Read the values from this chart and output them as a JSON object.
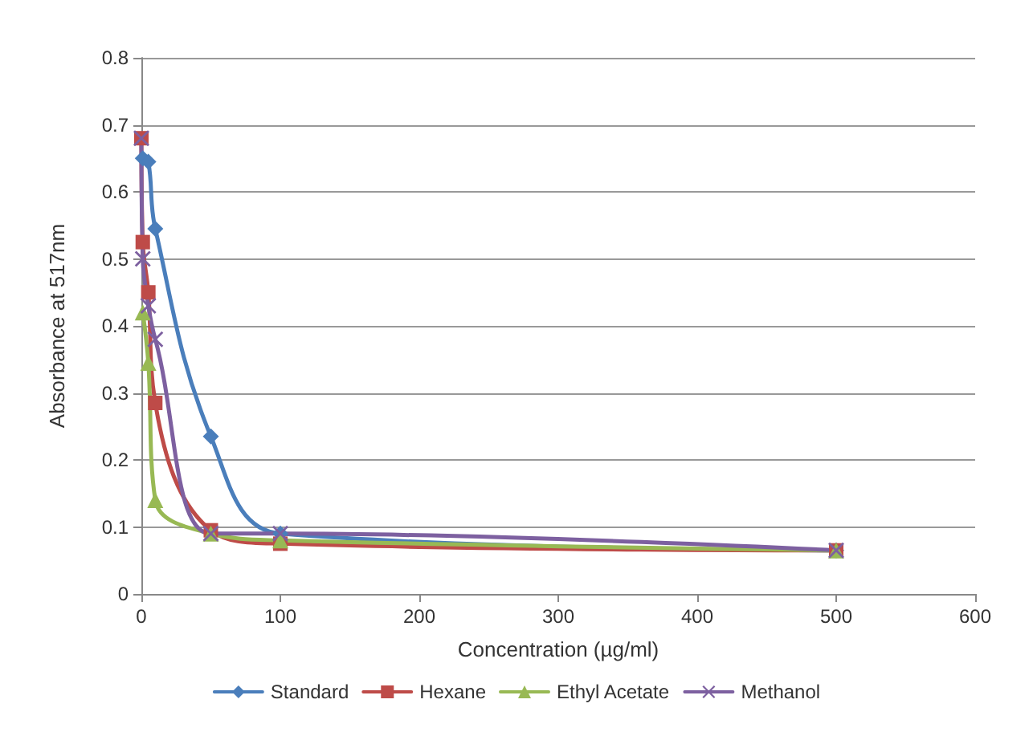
{
  "chart_data": {
    "type": "line",
    "xlabel": "Concentration (µg/ml)",
    "ylabel": "Absorbance at 517nm",
    "xlim": [
      0,
      600
    ],
    "xticks": [
      0,
      100,
      200,
      300,
      400,
      500,
      600
    ],
    "ylim": [
      0,
      0.8
    ],
    "yticks": [
      0,
      0.1,
      0.2,
      0.3,
      0.4,
      0.5,
      0.6,
      0.7,
      0.8
    ],
    "grid": "y",
    "legend": "bottom",
    "series": [
      {
        "name": "Standard",
        "color": "#4a7ebb",
        "marker": "diamond",
        "x": [
          1,
          5,
          10,
          50,
          100,
          500
        ],
        "values": [
          0.65,
          0.645,
          0.545,
          0.235,
          0.09,
          0.065
        ]
      },
      {
        "name": "Hexane",
        "color": "#be4b48",
        "marker": "square",
        "x": [
          0,
          1,
          5,
          10,
          50,
          100,
          500
        ],
        "values": [
          0.68,
          0.525,
          0.45,
          0.285,
          0.095,
          0.075,
          0.065
        ]
      },
      {
        "name": "Ethyl Acetate",
        "color": "#98b954",
        "marker": "triangle",
        "x": [
          1,
          5,
          10,
          50,
          100,
          500
        ],
        "values": [
          0.42,
          0.345,
          0.14,
          0.09,
          0.08,
          0.065
        ]
      },
      {
        "name": "Methanol",
        "color": "#7d60a0",
        "marker": "cross",
        "x": [
          0,
          1,
          5,
          10,
          50,
          100,
          500
        ],
        "values": [
          0.68,
          0.5,
          0.43,
          0.38,
          0.09,
          0.09,
          0.065
        ]
      }
    ]
  }
}
